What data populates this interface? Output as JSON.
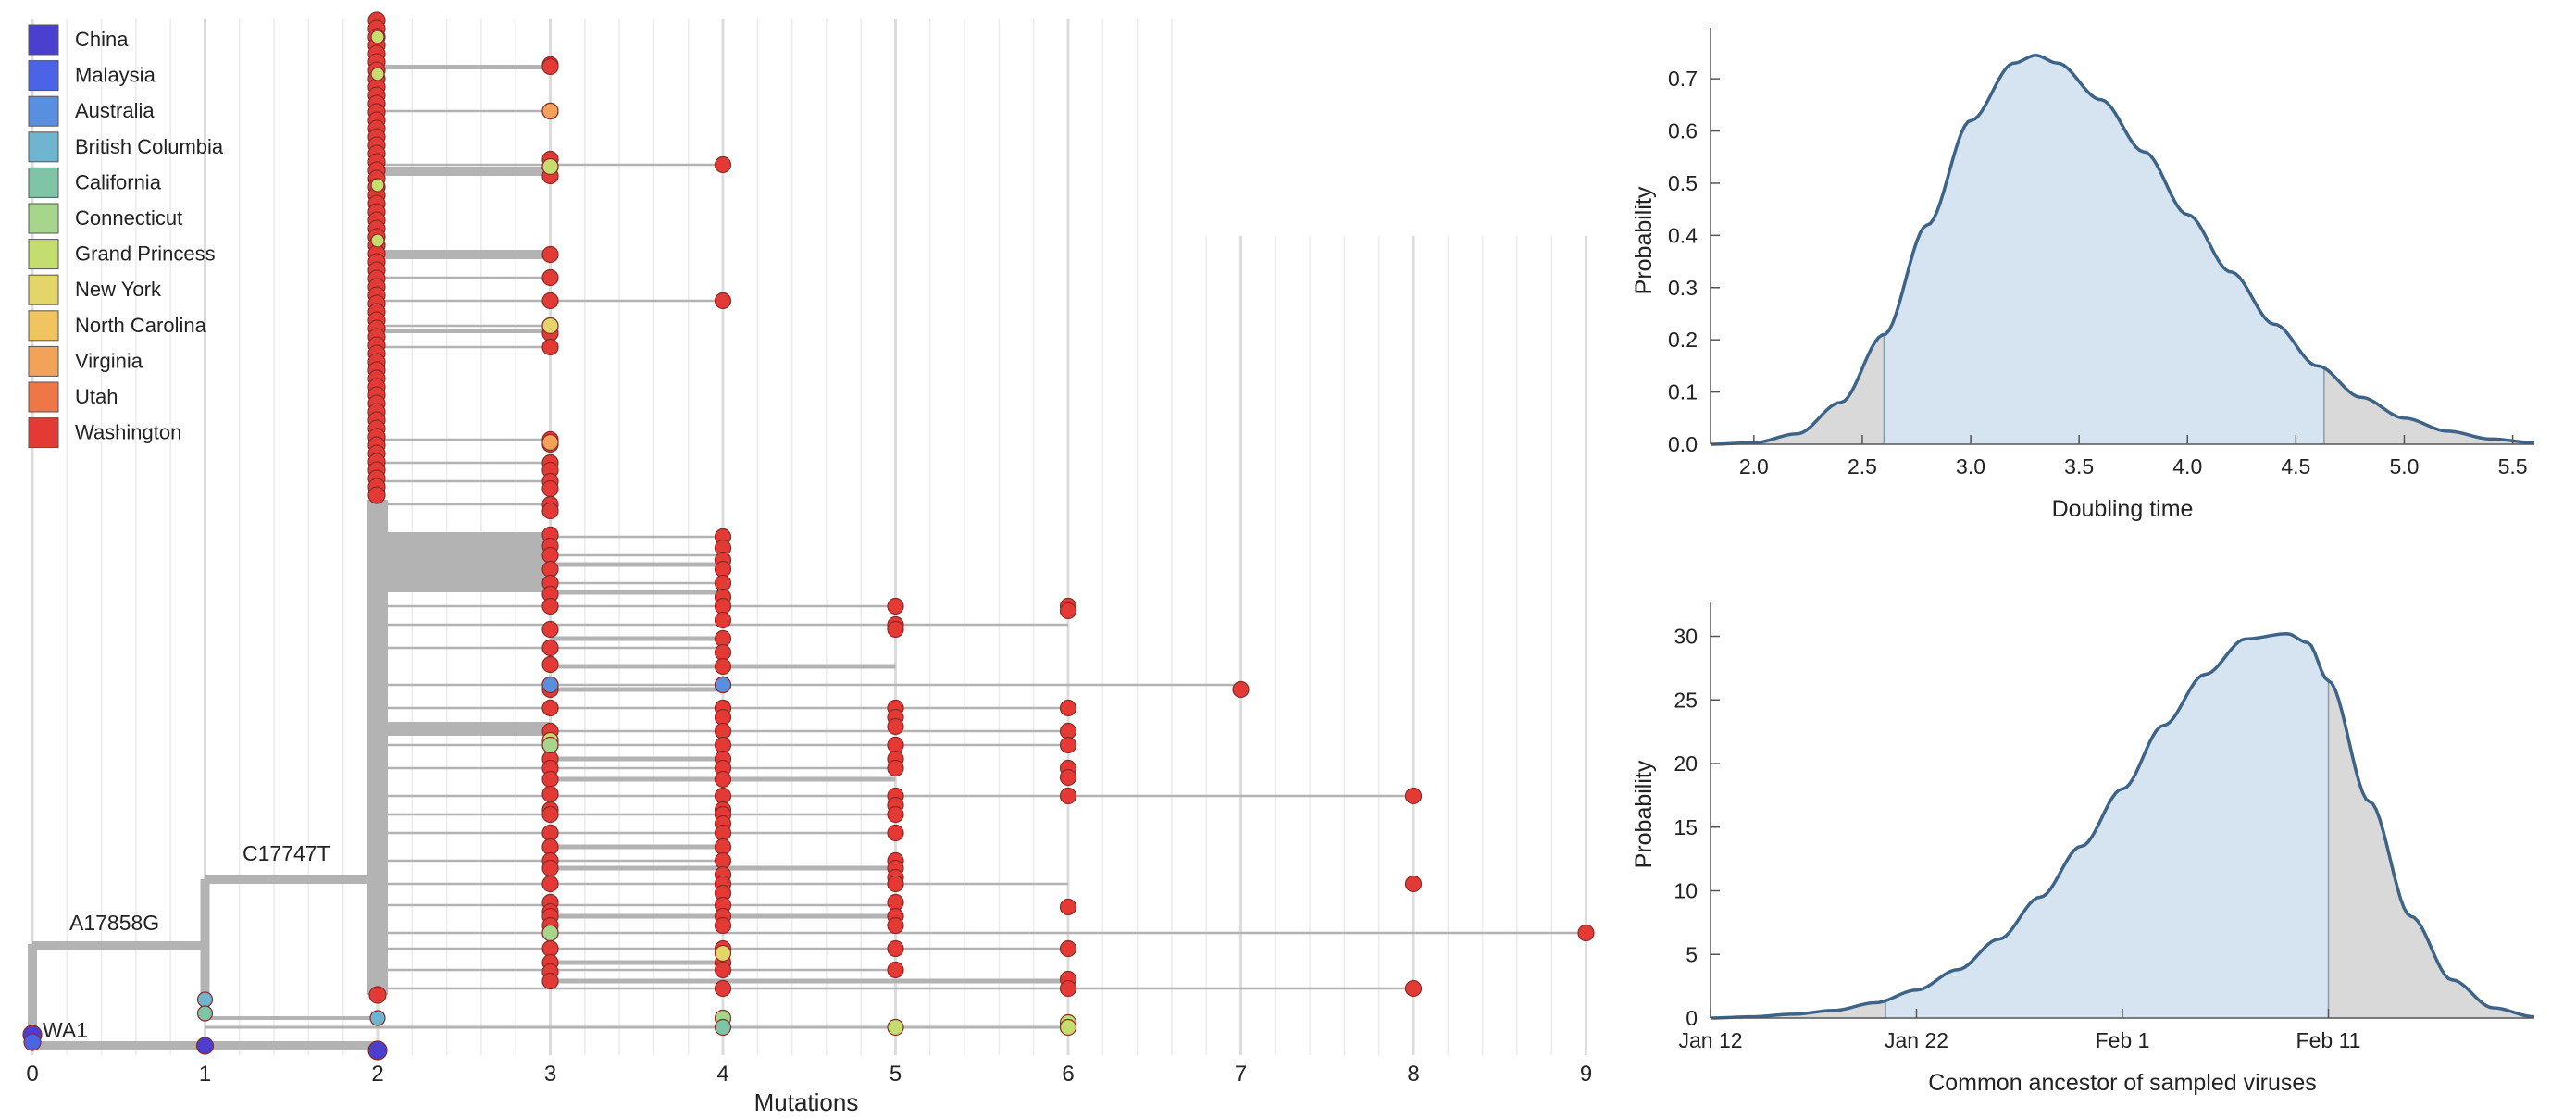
{
  "colors": {
    "China": "#4a3fcf",
    "Malaysia": "#4b63e6",
    "Australia": "#5a8fe0",
    "British Columbia": "#6fb5cf",
    "California": "#7fc4a6",
    "Connecticut": "#a6d68c",
    "Grand Princess": "#c5dc6e",
    "New York": "#e4d56a",
    "North Carolina": "#f0c45e",
    "Virginia": "#f3a259",
    "Utah": "#ef7747",
    "Washington": "#e43a36",
    "branch": "#b3b3b3",
    "curve": "#3d6488",
    "fill_main": "#d6e4f2",
    "fill_tail": "#d9d9d9"
  },
  "legend": [
    "China",
    "Malaysia",
    "Australia",
    "British Columbia",
    "California",
    "Connecticut",
    "Grand Princess",
    "New York",
    "North Carolina",
    "Virginia",
    "Utah",
    "Washington"
  ],
  "tree": {
    "branch_labels": [
      "A17858G",
      "C17747T",
      "WA1"
    ],
    "xlabel": "Mutations",
    "x_ticks": [
      "0",
      "1",
      "2",
      "3",
      "4",
      "5",
      "6",
      "7",
      "8",
      "9"
    ]
  },
  "chart_data": [
    {
      "type": "area",
      "x": [
        1.8,
        2.0,
        2.2,
        2.4,
        2.6,
        2.8,
        3.0,
        3.2,
        3.3,
        3.4,
        3.6,
        3.8,
        4.0,
        4.2,
        4.4,
        4.6,
        4.8,
        5.0,
        5.2,
        5.4,
        5.6
      ],
      "y": [
        0.0,
        0.003,
        0.02,
        0.08,
        0.21,
        0.42,
        0.62,
        0.73,
        0.745,
        0.73,
        0.66,
        0.56,
        0.44,
        0.33,
        0.23,
        0.15,
        0.09,
        0.05,
        0.025,
        0.01,
        0.003
      ],
      "shaded_interval": [
        2.6,
        4.63
      ],
      "xlabel": "Doubling time",
      "ylabel": "Probability",
      "xlim": [
        1.8,
        5.6
      ],
      "ylim": [
        0,
        0.78
      ],
      "x_ticks": [
        "2.0",
        "2.5",
        "3.0",
        "3.5",
        "4.0",
        "4.5",
        "5.0",
        "5.5"
      ],
      "y_ticks": [
        "0.0",
        "0.1",
        "0.2",
        "0.3",
        "0.4",
        "0.5",
        "0.6",
        "0.7"
      ]
    },
    {
      "type": "area",
      "x": [
        0,
        2,
        4,
        6,
        8,
        10,
        12,
        14,
        16,
        18,
        20,
        22,
        24,
        26,
        28,
        29,
        30,
        32,
        34,
        36,
        38,
        40
      ],
      "y": [
        0.0,
        0.1,
        0.3,
        0.6,
        1.2,
        2.2,
        3.8,
        6.2,
        9.5,
        13.5,
        18.0,
        23.0,
        27.0,
        29.8,
        30.2,
        29.5,
        26.5,
        17.0,
        8.0,
        3.0,
        0.8,
        0.1
      ],
      "shaded_interval": [
        8.5,
        30
      ],
      "xlabel": "Common ancestor of sampled viruses",
      "ylabel": "Probability",
      "xlim": [
        0,
        40
      ],
      "ylim": [
        0,
        32
      ],
      "x_ticks": [
        "Jan 12",
        "Jan 22",
        "Feb 1",
        "Feb 11"
      ],
      "x_tick_values": [
        0,
        10,
        20,
        30
      ],
      "y_ticks": [
        "0",
        "5",
        "10",
        "15",
        "20",
        "25",
        "30"
      ]
    }
  ]
}
